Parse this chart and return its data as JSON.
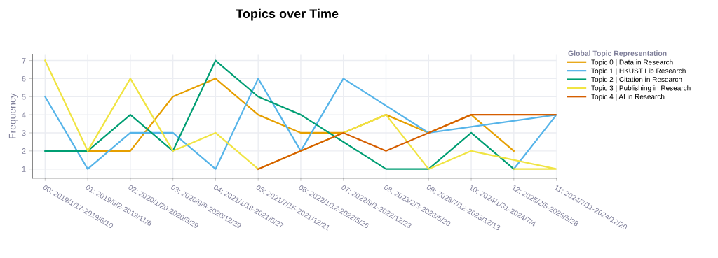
{
  "chart_data": {
    "type": "line",
    "title": "Topics over Time",
    "ylabel": "Frequency",
    "legend_title": "Global Topic Representation",
    "categories": [
      "00: 2019/1/17-2019/6/10",
      "01: 2019/9/2-2019/11/6",
      "02: 2020/1/20-2020/5/29",
      "03: 2020/9/9-2020/12/29",
      "04: 2021/1/18-2021/5/27",
      "05: 2021/7/15-2021/12/21",
      "06: 2022/1/12-2022/5/26",
      "07: 2022/9/1-2022/12/23",
      "08: 2023/2/3-2023/5/20",
      "09: 2023/7/12-2023/12/13",
      "10: 2024/1/31-2024/7/4",
      "12: 2025/2/5-2025/5/28",
      "11: 2024/7/11-2024/12/20"
    ],
    "series": [
      {
        "name": "Topic 0 | Data in Research",
        "color": "#e69f00",
        "x": [
          "01: 2019/9/2-2019/11/6",
          "02: 2020/1/20-2020/5/29",
          "03: 2020/9/9-2020/12/29",
          "04: 2021/1/18-2021/5/27",
          "05: 2021/7/15-2021/12/21",
          "06: 2022/1/12-2022/5/26",
          "07: 2022/9/1-2022/12/23",
          "08: 2023/2/3-2023/5/20",
          "09: 2023/7/12-2023/12/13",
          "10: 2024/1/31-2024/7/4",
          "12: 2025/2/5-2025/5/28"
        ],
        "values": [
          2,
          2,
          5,
          6,
          4,
          3,
          3,
          4,
          3,
          4,
          2
        ]
      },
      {
        "name": "Topic 1 | HKUST Lib Research",
        "color": "#56b4e9",
        "x": [
          "00: 2019/1/17-2019/6/10",
          "01: 2019/9/2-2019/11/6",
          "02: 2020/1/20-2020/5/29",
          "03: 2020/9/9-2020/12/29",
          "04: 2021/1/18-2021/5/27",
          "05: 2021/7/15-2021/12/21",
          "06: 2022/1/12-2022/5/26",
          "07: 2022/9/1-2022/12/23",
          "09: 2023/7/12-2023/12/13",
          "11: 2024/7/11-2024/12/20",
          "12: 2025/2/5-2025/5/28"
        ],
        "values": [
          5,
          1,
          3,
          3,
          1,
          6,
          2,
          6,
          3,
          4,
          1
        ]
      },
      {
        "name": "Topic 2 | Citation in Research",
        "color": "#009e73",
        "x": [
          "00: 2019/1/17-2019/6/10",
          "01: 2019/9/2-2019/11/6",
          "02: 2020/1/20-2020/5/29",
          "03: 2020/9/9-2020/12/29",
          "04: 2021/1/18-2021/5/27",
          "05: 2021/7/15-2021/12/21",
          "06: 2022/1/12-2022/5/26",
          "08: 2023/2/3-2023/5/20",
          "09: 2023/7/12-2023/12/13",
          "10: 2024/1/31-2024/7/4",
          "12: 2025/2/5-2025/5/28"
        ],
        "values": [
          2,
          2,
          4,
          2,
          7,
          5,
          4,
          1,
          1,
          3,
          1
        ]
      },
      {
        "name": "Topic 3 | Publishing in Research",
        "color": "#f0e442",
        "x": [
          "00: 2019/1/17-2019/6/10",
          "01: 2019/9/2-2019/11/6",
          "02: 2020/1/20-2020/5/29",
          "03: 2020/9/9-2020/12/29",
          "04: 2021/1/18-2021/5/27",
          "05: 2021/7/15-2021/12/21",
          "07: 2022/9/1-2022/12/23",
          "08: 2023/2/3-2023/5/20",
          "09: 2023/7/12-2023/12/13",
          "10: 2024/1/31-2024/7/4",
          "11: 2024/7/11-2024/12/20",
          "12: 2025/2/5-2025/5/28"
        ],
        "values": [
          7,
          2,
          6,
          2,
          3,
          1,
          3,
          4,
          1,
          2,
          1,
          1
        ]
      },
      {
        "name": "Topic 4 | AI in Research",
        "color": "#d55e00",
        "x": [
          "05: 2021/7/15-2021/12/21",
          "06: 2022/1/12-2022/5/26",
          "07: 2022/9/1-2022/12/23",
          "08: 2023/2/3-2023/5/20",
          "09: 2023/7/12-2023/12/13",
          "10: 2024/1/31-2024/7/4",
          "11: 2024/7/11-2024/12/20",
          "12: 2025/2/5-2025/5/28"
        ],
        "values": [
          1,
          2,
          3,
          2,
          3,
          4,
          4,
          4
        ]
      }
    ],
    "ylim": [
      0.5,
      7.35
    ],
    "yticks": [
      1,
      2,
      3,
      4,
      5,
      6,
      7
    ],
    "grid": true,
    "legend": "top right"
  }
}
